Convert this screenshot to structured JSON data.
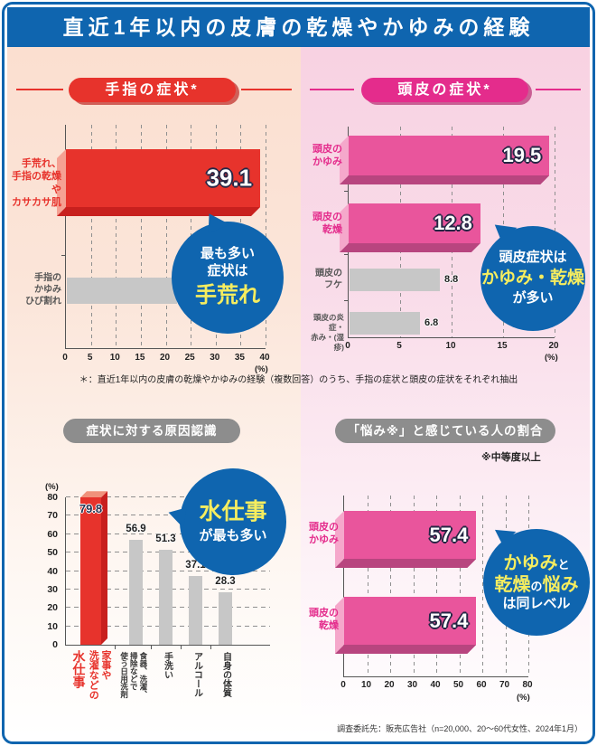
{
  "page": {
    "title": "直近1年以内の皮膚の乾燥やかゆみの経験",
    "footnote": "＊：直近1年以内の皮膚の乾燥やかゆみの経験（複数回答）のうち、手指の症状と頭皮の症状をそれぞれ抽出",
    "source": "調査委託先：販売広告社（n=20,000、20～60代女性、2024年1月）"
  },
  "colors": {
    "header_blue": "#0F65AF",
    "callout_blue": "#0F65AF",
    "red": "#E7332C",
    "red_dark": "#C8201E",
    "red_light": "#F5A193",
    "pink": "#E9559C",
    "pink_pill": "#E42C8C",
    "pink_light": "#F5A8CB",
    "pink_dark": "#B8457F",
    "gray_bar": "#C7C7C7",
    "gray_pill": "#8D8D8D",
    "yellow_text": "#F6ED5F",
    "bg_left": "#FBDFD0",
    "bg_right": "#F8D2E2"
  },
  "chart_data": [
    {
      "id": "hand-symptoms",
      "type": "bar",
      "orientation": "horizontal",
      "title": "手指の症状*",
      "categories": [
        "手荒れ、\n手指の乾燥や\nカサカサ肌",
        "手指の\nかゆみ\nひび割れ"
      ],
      "values": [
        39.1,
        22.2
      ],
      "xlim": [
        0,
        40
      ],
      "xticks": [
        0,
        5,
        10,
        15,
        20,
        25,
        30,
        35,
        40
      ],
      "unit": "(%)",
      "grid": "dashed-vertical",
      "bar_colors": [
        "#E7332C",
        "#C7C7C7"
      ],
      "callout": {
        "lead": "最も多い\n症状は",
        "emphasis": "手荒れ"
      }
    },
    {
      "id": "scalp-symptoms",
      "type": "bar",
      "orientation": "horizontal",
      "title": "頭皮の症状*",
      "categories": [
        "頭皮の\nかゆみ",
        "頭皮の\n乾燥",
        "頭皮の\nフケ",
        "頭皮の炎症・\n赤み・(湿疹)"
      ],
      "values": [
        19.5,
        12.8,
        8.8,
        6.8
      ],
      "xlim": [
        0,
        20
      ],
      "xticks": [
        0,
        5,
        10,
        15,
        20
      ],
      "unit": "(%)",
      "grid": "dashed-vertical",
      "bar_colors": [
        "#E9559C",
        "#E9559C",
        "#C7C7C7",
        "#C7C7C7"
      ],
      "callout": {
        "lead": "頭皮症状は",
        "emphasis": "かゆみ・乾燥",
        "tail": "が多い"
      }
    },
    {
      "id": "cause-recognition",
      "type": "bar",
      "orientation": "vertical",
      "title": "症状に対する原因認識",
      "categories": [
        "家事や洗濯などの水仕事",
        "食器、洗濯、掃除などで使う日用洗剤",
        "手洗い",
        "アルコール",
        "自身の体質"
      ],
      "cat_lines": [
        [
          "家事や",
          "洗濯などの",
          "水仕事"
        ],
        [
          "食器、洗濯、",
          "掃除などで",
          "使う日用洗剤"
        ],
        [
          "手洗い"
        ],
        [
          "アルコール"
        ],
        [
          "自身の体質"
        ]
      ],
      "values": [
        79.8,
        56.9,
        51.3,
        37.1,
        28.3
      ],
      "ylim": [
        0,
        80
      ],
      "yticks": [
        0,
        10,
        20,
        30,
        40,
        50,
        60,
        70,
        80
      ],
      "unit": "(%)",
      "grid": "dashed-horizontal",
      "bar_colors": [
        "#E7332C",
        "#C7C7C7",
        "#C7C7C7",
        "#C7C7C7",
        "#C7C7C7"
      ],
      "callout": {
        "emphasis": "水仕事",
        "tail": "が最も多い"
      }
    },
    {
      "id": "worry-level",
      "type": "bar",
      "orientation": "horizontal",
      "title": "「悩み※」と感じている人の割合",
      "note": "※中等度以上",
      "categories": [
        "頭皮の\nかゆみ",
        "頭皮の\n乾燥"
      ],
      "values": [
        57.4,
        57.4
      ],
      "xlim": [
        0,
        80
      ],
      "xticks": [
        0,
        10,
        20,
        30,
        40,
        50,
        60,
        70,
        80
      ],
      "unit": "(%)",
      "grid": "dashed-vertical",
      "bar_colors": [
        "#E9559C",
        "#E9559C"
      ],
      "callout": {
        "seg_y1": "かゆみ",
        "seg_w1": "と",
        "seg_y2": "乾燥",
        "seg_w2": "の",
        "seg_y3": "悩み",
        "tail": "は同レベル"
      }
    }
  ]
}
